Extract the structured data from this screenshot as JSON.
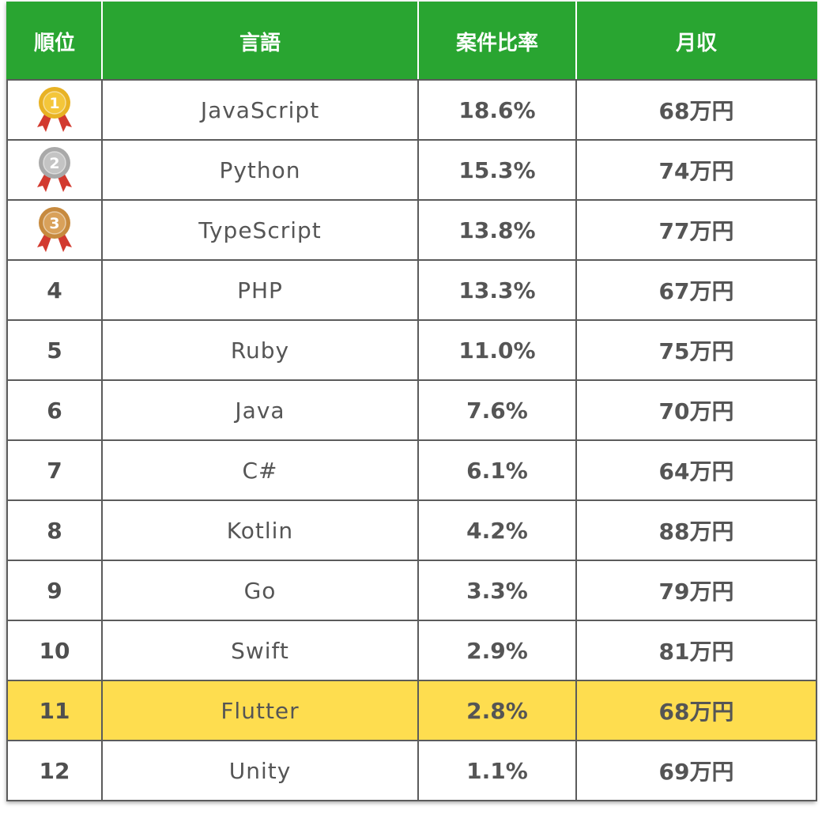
{
  "header": {
    "rank": "順位",
    "language": "言語",
    "ratio": "案件比率",
    "income": "月収"
  },
  "medals": [
    {
      "label": "1",
      "color": "#e8b224",
      "inner": "#f4c63a",
      "icon": "gold-medal-icon"
    },
    {
      "label": "2",
      "color": "#a9a9a9",
      "inner": "#c4c4c4",
      "icon": "silver-medal-icon"
    },
    {
      "label": "3",
      "color": "#c78a3e",
      "inner": "#d9a15a",
      "icon": "bronze-medal-icon"
    }
  ],
  "rows": [
    {
      "rank": "1",
      "language": "JavaScript",
      "ratio": "18.6%",
      "income": "68万円"
    },
    {
      "rank": "2",
      "language": "Python",
      "ratio": "15.3%",
      "income": "74万円"
    },
    {
      "rank": "3",
      "language": "TypeScript",
      "ratio": "13.8%",
      "income": "77万円"
    },
    {
      "rank": "4",
      "language": "PHP",
      "ratio": "13.3%",
      "income": "67万円"
    },
    {
      "rank": "5",
      "language": "Ruby",
      "ratio": "11.0%",
      "income": "75万円"
    },
    {
      "rank": "6",
      "language": "Java",
      "ratio": "7.6%",
      "income": "70万円"
    },
    {
      "rank": "7",
      "language": "C#",
      "ratio": "6.1%",
      "income": "64万円"
    },
    {
      "rank": "8",
      "language": "Kotlin",
      "ratio": "4.2%",
      "income": "88万円"
    },
    {
      "rank": "9",
      "language": "Go",
      "ratio": "3.3%",
      "income": "79万円"
    },
    {
      "rank": "10",
      "language": "Swift",
      "ratio": "2.9%",
      "income": "81万円"
    },
    {
      "rank": "11",
      "language": "Flutter",
      "ratio": "2.8%",
      "income": "68万円"
    },
    {
      "rank": "12",
      "language": "Unity",
      "ratio": "1.1%",
      "income": "69万円"
    }
  ],
  "highlight_rank": "11",
  "colors": {
    "header_bg": "#29a531",
    "highlight_bg": "#fedd4f",
    "ribbon": "#d23a2f"
  }
}
